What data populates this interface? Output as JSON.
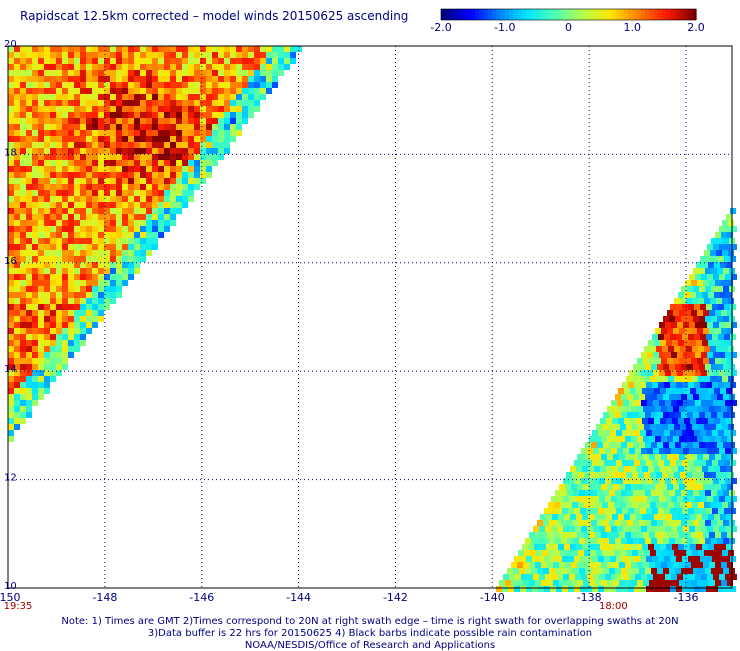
{
  "title": "Rapidscat 12.5km corrected – model winds 20150625 ascending",
  "colorbar": {
    "min": -2.0,
    "max": 2.0,
    "labels": [
      "-2.0",
      "-1.0",
      "0",
      "1.0",
      "2.0"
    ],
    "colors": [
      "#00007f",
      "#0000ff",
      "#0080ff",
      "#00e5ff",
      "#4dffb3",
      "#b3ff4d",
      "#ffe600",
      "#ff8000",
      "#ff1a00",
      "#800000"
    ]
  },
  "map": {
    "lon_range": [
      -150,
      -135
    ],
    "lat_range": [
      10,
      20
    ],
    "grid": "dotted",
    "lon_ticks": [
      {
        "value": -150,
        "label": "-150"
      },
      {
        "value": -148,
        "label": "-148"
      },
      {
        "value": -146,
        "label": "-146"
      },
      {
        "value": -144,
        "label": "-144"
      },
      {
        "value": -142,
        "label": "-142"
      },
      {
        "value": -140,
        "label": "-140"
      },
      {
        "value": -138,
        "label": "-138"
      },
      {
        "value": -136,
        "label": "-136"
      }
    ],
    "lat_ticks": [
      {
        "value": 20,
        "label": "20"
      },
      {
        "value": 18,
        "label": "18"
      },
      {
        "value": 16,
        "label": "16"
      },
      {
        "value": 14,
        "label": "14"
      },
      {
        "value": 12,
        "label": "12"
      },
      {
        "value": 10,
        "label": "10"
      }
    ],
    "swaths": [
      {
        "name": "west-swath",
        "time": "19:35",
        "time_lon": -150,
        "shape": "upper-left triangle"
      },
      {
        "name": "east-swath",
        "time": "18:00",
        "time_lon": -137.5,
        "shape": "lower-right triangle"
      }
    ]
  },
  "notes": [
    "Note: 1) Times are GMT 2)Times correspond to 20N at right swath edge – time is right swath for overlapping swaths at 20N",
    "3)Data buffer is 22 hrs for 20150625 4) Black barbs indicate possible rain contamination",
    "NOAA/NESDIS/Office of Research and Applications"
  ]
}
